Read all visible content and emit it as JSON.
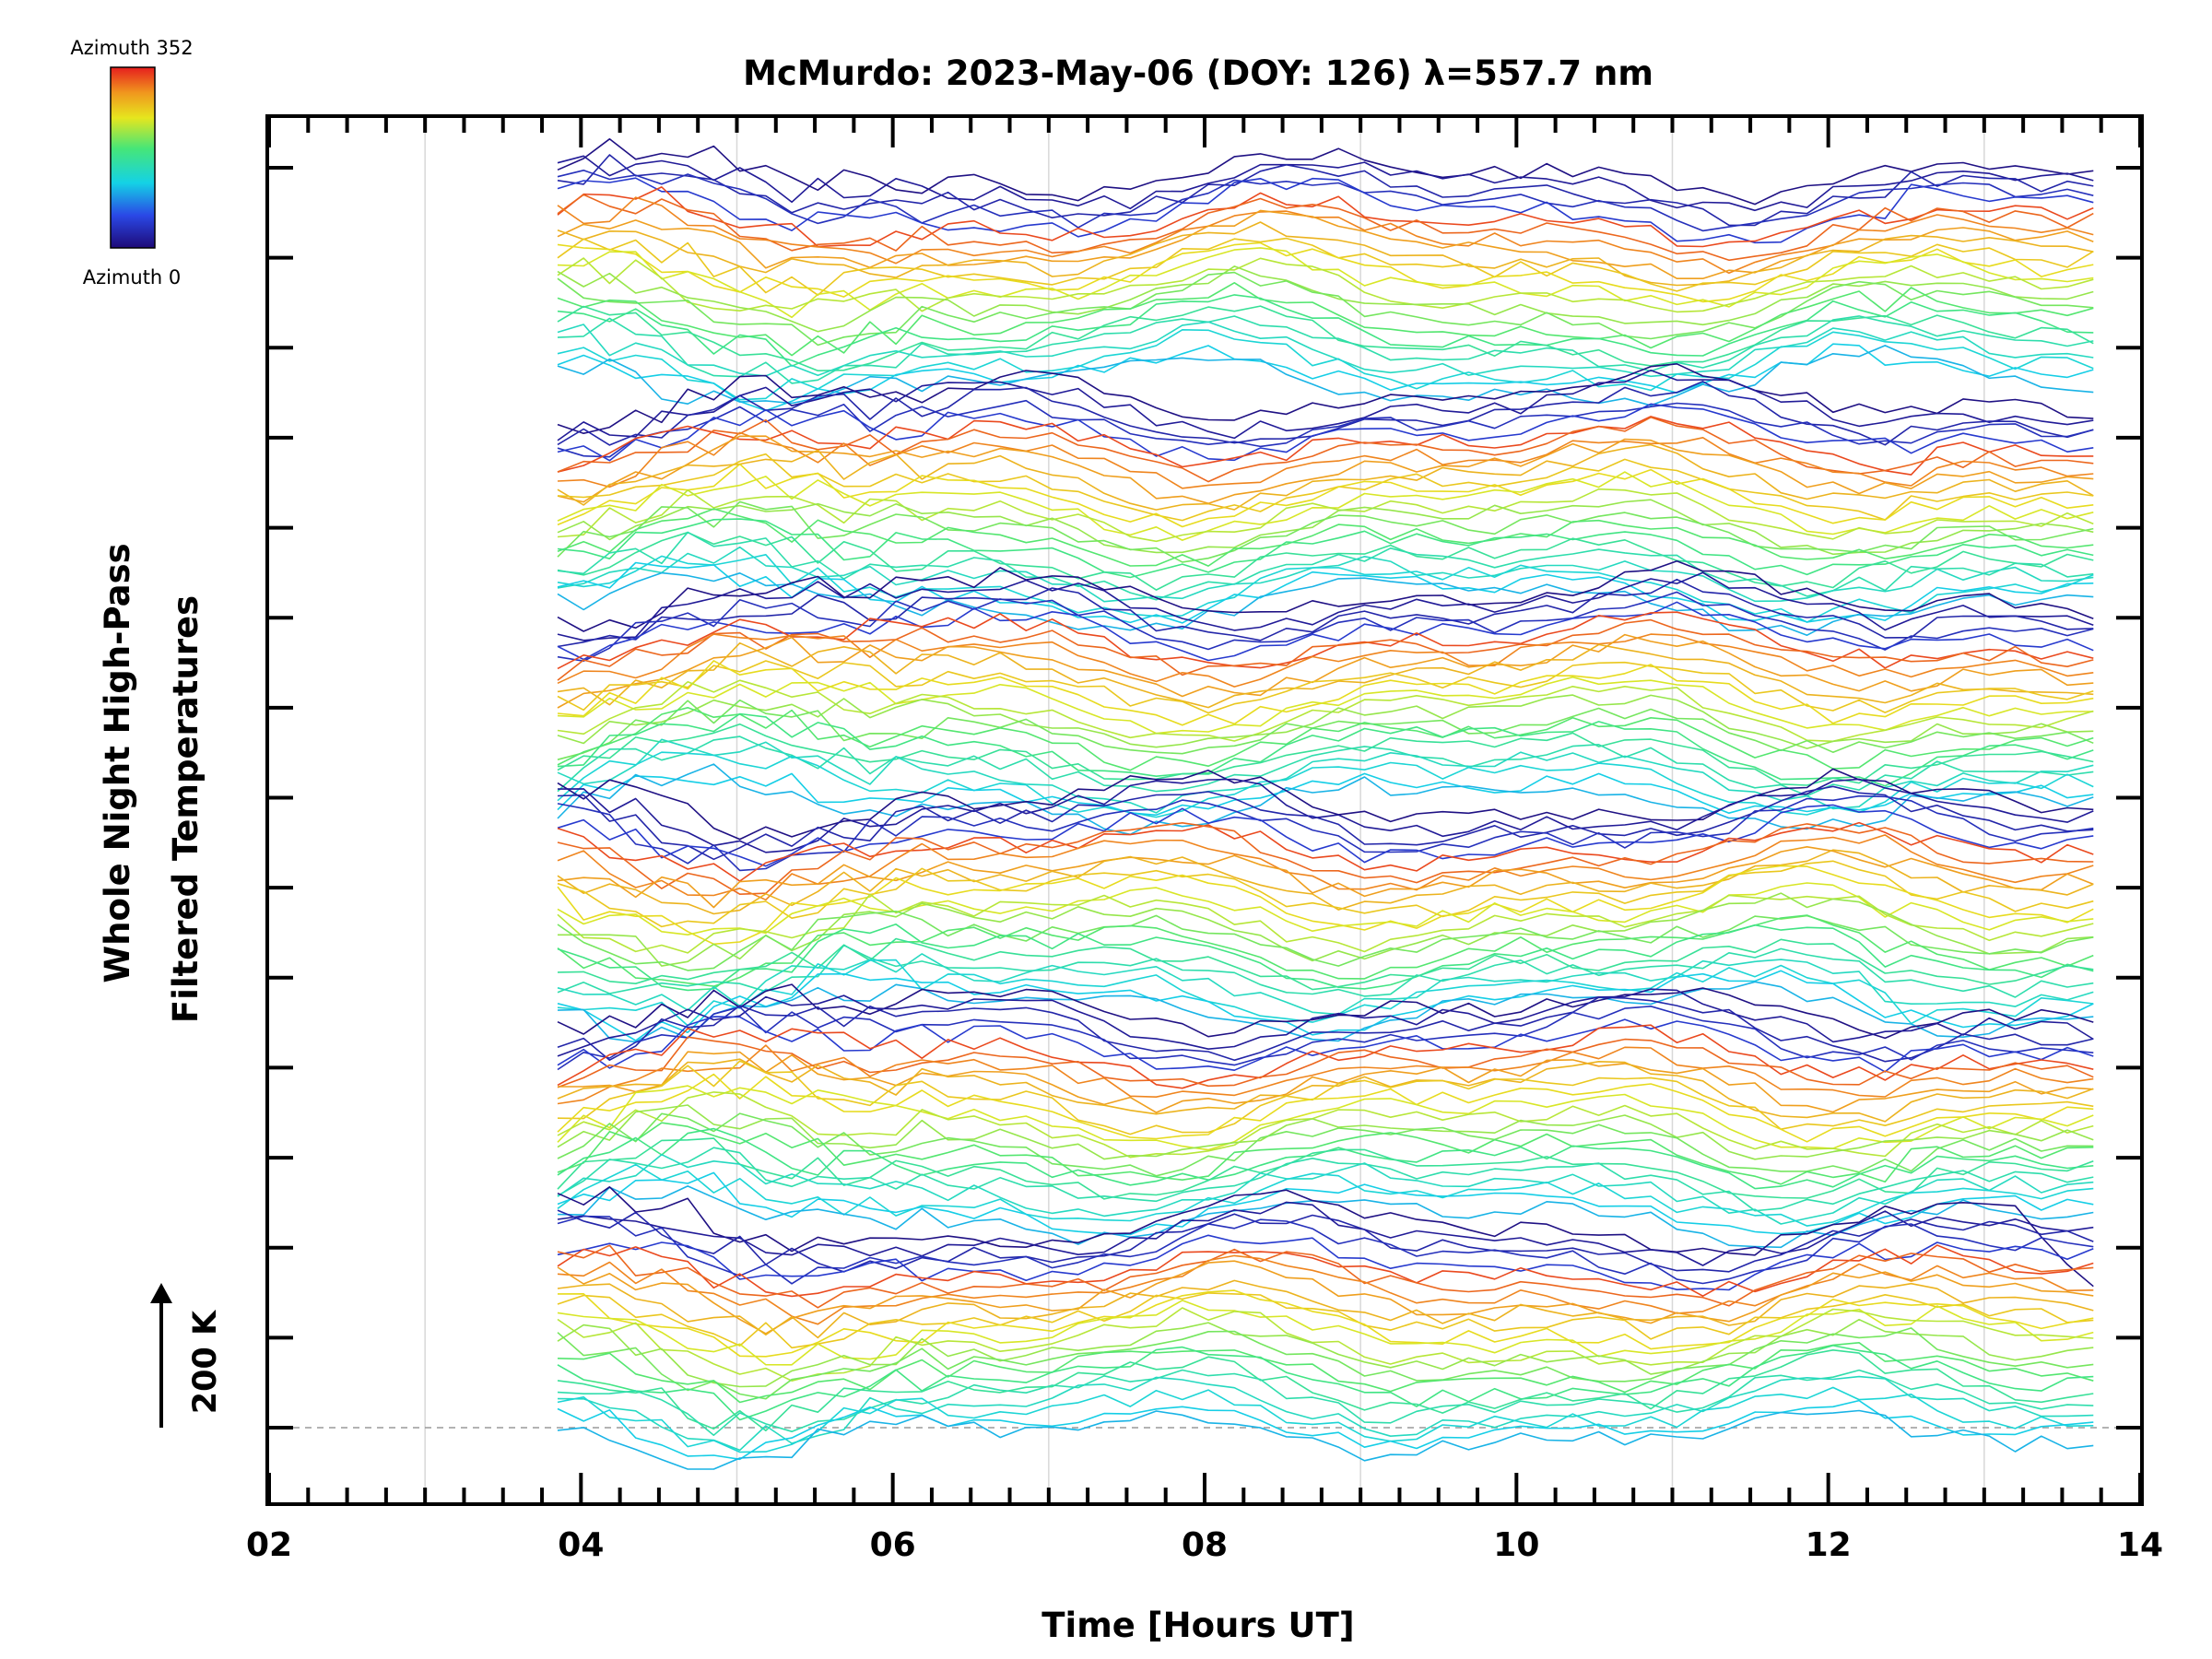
{
  "chart_data": {
    "type": "line",
    "title": "McMurdo: 2023-May-06 (DOY: 126) λ=557.7 nm",
    "xlabel": "Time [Hours UT]",
    "ylabel_line1": "Whole Night High-Pass",
    "ylabel_line2": "Filtered Temperatures",
    "xlim": [
      2,
      14
    ],
    "x_ticks": [
      2,
      4,
      6,
      8,
      10,
      12,
      14
    ],
    "x_tick_labels": [
      "02",
      "04",
      "06",
      "08",
      "10",
      "12",
      "14"
    ],
    "grid_x_minor": [
      3,
      5,
      7,
      9,
      11,
      13
    ],
    "x_start": 3.85,
    "x_end": 13.7,
    "n_points": 60,
    "n_traces": 144,
    "n_groups": 6,
    "traces_per_group": 24,
    "colorbar": {
      "label_top": "Azimuth 352",
      "label_bottom": "Azimuth 0",
      "min": 0,
      "max": 352,
      "colormap": "rainbow"
    },
    "scale_label": "200 K",
    "colors": {
      "axis": "#000000",
      "grid": "#d8d8d8",
      "baseline": "#9a9a9a"
    }
  }
}
